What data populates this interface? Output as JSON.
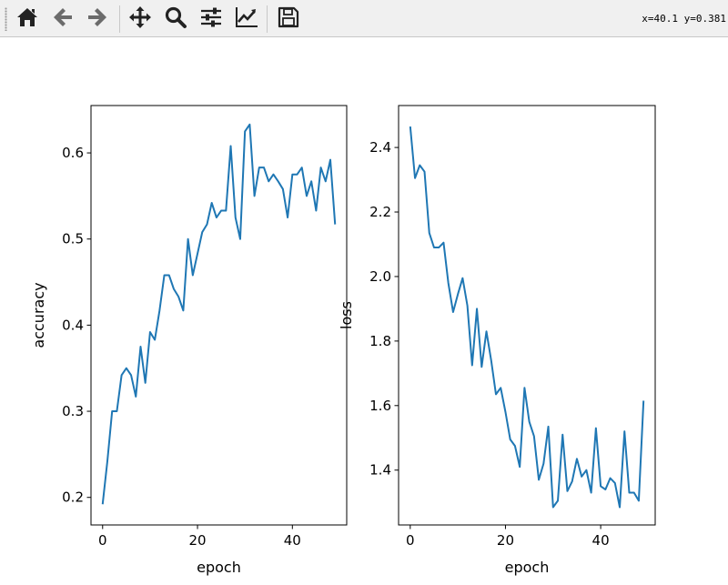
{
  "toolbar": {
    "buttons": [
      {
        "name": "home-icon",
        "tooltip": "Reset original view"
      },
      {
        "name": "back-arrow-icon",
        "tooltip": "Back"
      },
      {
        "name": "forward-arrow-icon",
        "tooltip": "Forward"
      },
      {
        "name": "pan-move-icon",
        "tooltip": "Pan"
      },
      {
        "name": "zoom-magnifier-icon",
        "tooltip": "Zoom"
      },
      {
        "name": "subplots-sliders-icon",
        "tooltip": "Subplots"
      },
      {
        "name": "edit-axes-icon",
        "tooltip": "Customize"
      },
      {
        "name": "save-floppy-icon",
        "tooltip": "Save"
      }
    ],
    "coordinates": "x=40.1 y=0.381"
  },
  "chart_data": [
    {
      "type": "line",
      "title": "",
      "xlabel": "epoch",
      "ylabel": "accuracy",
      "xlim": [
        -2.45,
        51.45
      ],
      "ylim": [
        0.168,
        0.655
      ],
      "xticks": [
        0,
        20,
        40
      ],
      "xtick_labels": [
        "0",
        "20",
        "40"
      ],
      "yticks": [
        0.2,
        0.3,
        0.4,
        0.5,
        0.6
      ],
      "ytick_labels": [
        "0.2",
        "0.3",
        "0.4",
        "0.5",
        "0.6"
      ],
      "color": "#1f77b4",
      "x": [
        0,
        1,
        2,
        3,
        4,
        5,
        6,
        7,
        8,
        9,
        10,
        11,
        12,
        13,
        14,
        15,
        16,
        17,
        18,
        19,
        20,
        21,
        22,
        23,
        24,
        25,
        26,
        27,
        28,
        29,
        30,
        31,
        32,
        33,
        34,
        35,
        36,
        37,
        38,
        39,
        40,
        41,
        42,
        43,
        44,
        45,
        46,
        47,
        48,
        49
      ],
      "y": [
        0.192,
        0.242,
        0.3,
        0.3,
        0.342,
        0.35,
        0.342,
        0.317,
        0.375,
        0.333,
        0.392,
        0.383,
        0.417,
        0.458,
        0.458,
        0.442,
        0.433,
        0.417,
        0.5,
        0.458,
        0.483,
        0.508,
        0.517,
        0.542,
        0.525,
        0.533,
        0.533,
        0.608,
        0.525,
        0.5,
        0.625,
        0.633,
        0.55,
        0.583,
        0.583,
        0.567,
        0.575,
        0.567,
        0.558,
        0.525,
        0.575,
        0.575,
        0.583,
        0.55,
        0.567,
        0.533,
        0.583,
        0.567,
        0.592,
        0.517
      ]
    },
    {
      "type": "line",
      "title": "",
      "xlabel": "epoch",
      "ylabel": "loss",
      "xlim": [
        -2.45,
        51.45
      ],
      "ylim": [
        1.23,
        2.53
      ],
      "xticks": [
        0,
        20,
        40
      ],
      "xtick_labels": [
        "0",
        "20",
        "40"
      ],
      "yticks": [
        1.4,
        1.6,
        1.8,
        2.0,
        2.2,
        2.4
      ],
      "ytick_labels": [
        "1.4",
        "1.6",
        "1.8",
        "2.0",
        "2.2",
        "2.4"
      ],
      "color": "#1f77b4",
      "x": [
        0,
        1,
        2,
        3,
        4,
        5,
        6,
        7,
        8,
        9,
        10,
        11,
        12,
        13,
        14,
        15,
        16,
        17,
        18,
        19,
        20,
        21,
        22,
        23,
        24,
        25,
        26,
        27,
        28,
        29,
        30,
        31,
        32,
        33,
        34,
        35,
        36,
        37,
        38,
        39,
        40,
        41,
        42,
        43,
        44,
        45,
        46,
        47,
        48,
        49
      ],
      "y": [
        2.465,
        2.305,
        2.345,
        2.325,
        2.135,
        2.09,
        2.09,
        2.105,
        1.98,
        1.89,
        1.945,
        1.995,
        1.91,
        1.725,
        1.9,
        1.72,
        1.83,
        1.74,
        1.635,
        1.655,
        1.58,
        1.495,
        1.475,
        1.41,
        1.655,
        1.55,
        1.505,
        1.37,
        1.42,
        1.535,
        1.285,
        1.305,
        1.51,
        1.335,
        1.365,
        1.435,
        1.38,
        1.4,
        1.33,
        1.53,
        1.35,
        1.34,
        1.375,
        1.36,
        1.285,
        1.52,
        1.33,
        1.33,
        1.305,
        1.615
      ]
    }
  ]
}
